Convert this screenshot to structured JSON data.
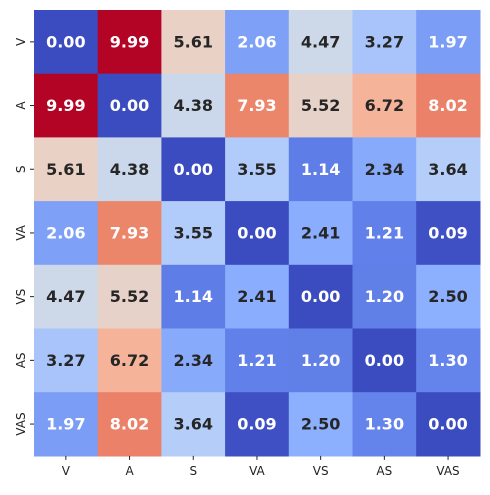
{
  "chart_data": {
    "type": "heatmap",
    "title": "",
    "xlabel": "",
    "ylabel": "",
    "x_categories": [
      "V",
      "A",
      "S",
      "VA",
      "VS",
      "AS",
      "VAS"
    ],
    "y_categories": [
      "V",
      "A",
      "S",
      "VA",
      "VS",
      "AS",
      "VAS"
    ],
    "values": [
      [
        0.0,
        9.99,
        5.61,
        2.06,
        4.47,
        3.27,
        1.97
      ],
      [
        9.99,
        0.0,
        4.38,
        7.93,
        5.52,
        6.72,
        8.02
      ],
      [
        5.61,
        4.38,
        0.0,
        3.55,
        1.14,
        2.34,
        3.64
      ],
      [
        2.06,
        7.93,
        3.55,
        0.0,
        2.41,
        1.21,
        0.09
      ],
      [
        4.47,
        5.52,
        1.14,
        2.41,
        0.0,
        1.2,
        2.5
      ],
      [
        3.27,
        6.72,
        2.34,
        1.21,
        1.2,
        0.0,
        1.3
      ],
      [
        1.97,
        8.02,
        3.64,
        0.09,
        2.5,
        1.3,
        0.0
      ]
    ],
    "value_range": [
      0,
      9.99
    ],
    "colormap": "coolwarm",
    "colorbar": false,
    "annotations": true,
    "annotation_format": "0.00",
    "grid": false,
    "colors": {
      "low": "#3b4cc0",
      "mid": "#dddcdc",
      "high": "#b40426",
      "text_dark": "#262626",
      "text_light": "#ffffff"
    }
  }
}
